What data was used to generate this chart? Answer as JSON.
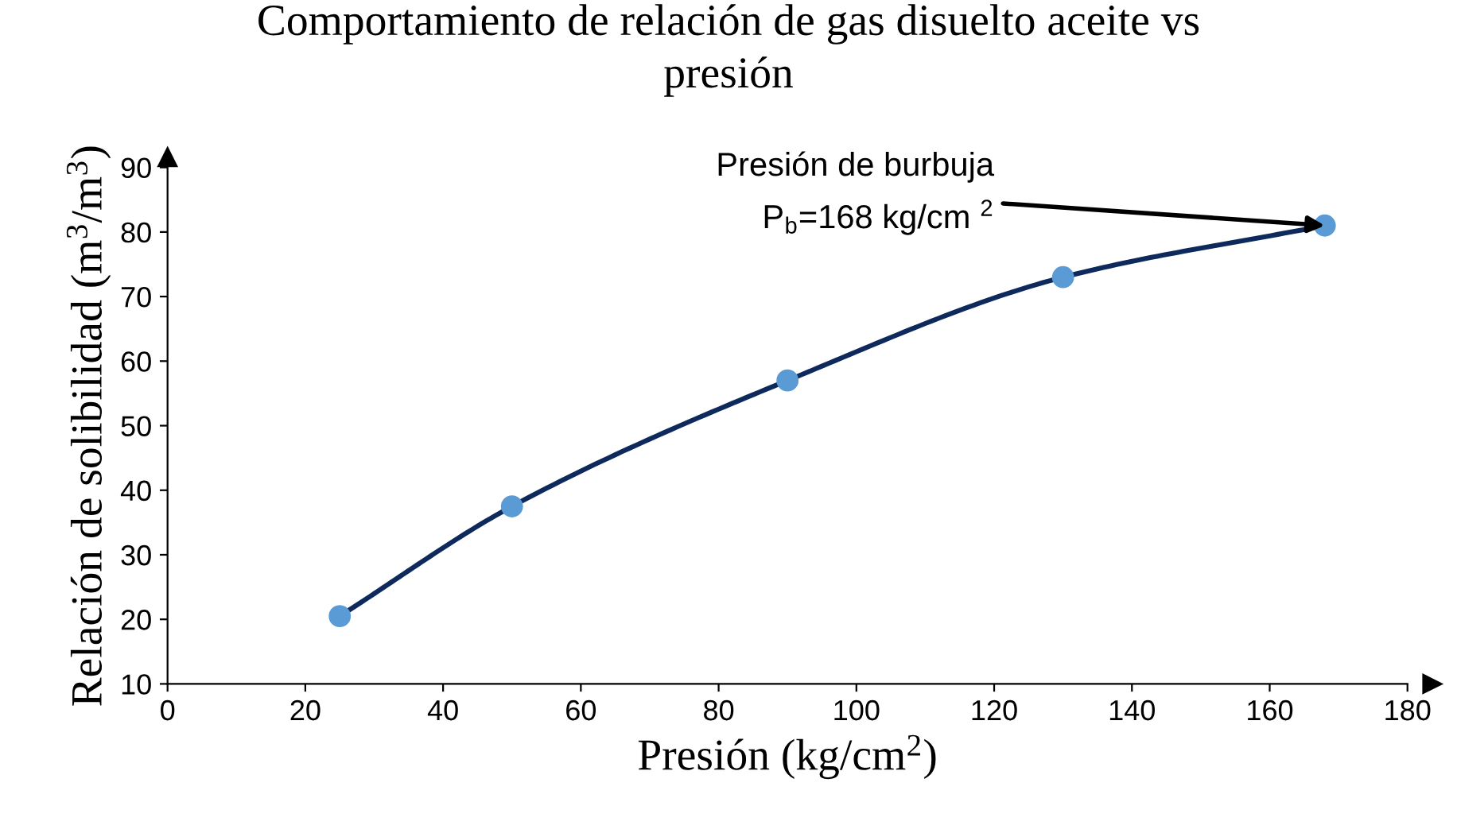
{
  "chart_data": {
    "type": "line",
    "title": "Comportamiento de relación de gas disuelto aceite vs\npresión",
    "xlabel": "Presión (kg/cm$^{2}$)",
    "ylabel": "Relación de solibilidad (m$^{3}$/m$^{3}$)",
    "x": [
      25,
      50,
      90,
      130,
      168
    ],
    "series": [
      {
        "color": "#0e2a5c",
        "marker": "none",
        "values": [
          20.5,
          37.5,
          57,
          73,
          81
        ]
      },
      {
        "type": "scatter",
        "color": "#5b9bd5",
        "marker": "circle",
        "values": [
          20.5,
          37.5,
          57,
          73,
          81
        ]
      }
    ],
    "xlim": [
      0,
      180
    ],
    "xticks": [
      0,
      20,
      40,
      60,
      80,
      100,
      120,
      140,
      160,
      180
    ],
    "ylim": [
      10,
      90
    ],
    "yticks": [
      10,
      20,
      30,
      40,
      50,
      60,
      70,
      80,
      90
    ],
    "grid": false,
    "legend": false,
    "annotations": [
      {
        "text": "Presión de burbuja\nP$_{b}$=168 kg/cm $^{2}$",
        "x": 168,
        "y": 81
      }
    ]
  }
}
